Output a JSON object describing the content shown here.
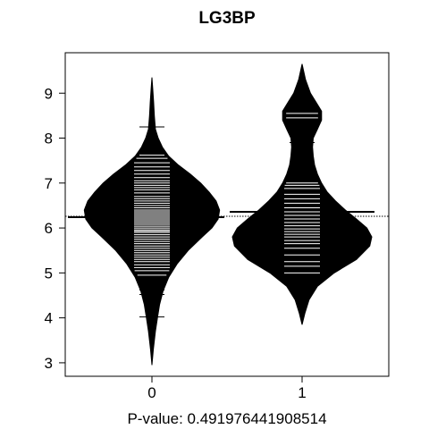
{
  "chart_data": {
    "type": "beanplot",
    "title": "LG3BP",
    "xlabel": "P-value: 0.491976441908514",
    "ylabel": "",
    "ylim": [
      2.7,
      9.9
    ],
    "yticks": [
      3,
      4,
      5,
      6,
      7,
      8,
      9
    ],
    "overall_mean_line": 6.26,
    "grid": false,
    "legend": "none",
    "groups": [
      {
        "label": "0",
        "mean": 6.24,
        "density": [
          [
            2.95,
            0.0
          ],
          [
            3.3,
            0.02
          ],
          [
            3.7,
            0.05
          ],
          [
            4.0,
            0.08
          ],
          [
            4.3,
            0.11
          ],
          [
            4.6,
            0.16
          ],
          [
            4.9,
            0.24
          ],
          [
            5.2,
            0.36
          ],
          [
            5.5,
            0.52
          ],
          [
            5.8,
            0.72
          ],
          [
            6.0,
            0.86
          ],
          [
            6.2,
            0.95
          ],
          [
            6.4,
            0.97
          ],
          [
            6.6,
            0.92
          ],
          [
            6.8,
            0.82
          ],
          [
            7.0,
            0.7
          ],
          [
            7.2,
            0.55
          ],
          [
            7.4,
            0.38
          ],
          [
            7.6,
            0.24
          ],
          [
            7.8,
            0.15
          ],
          [
            8.0,
            0.09
          ],
          [
            8.2,
            0.05
          ],
          [
            8.5,
            0.035
          ],
          [
            8.8,
            0.025
          ],
          [
            9.1,
            0.012
          ],
          [
            9.35,
            0.0
          ]
        ],
        "points": [
          4.02,
          4.52,
          4.62,
          4.72,
          4.85,
          4.95,
          5.05,
          5.12,
          5.18,
          5.25,
          5.3,
          5.35,
          5.4,
          5.45,
          5.5,
          5.55,
          5.6,
          5.65,
          5.7,
          5.75,
          5.8,
          5.85,
          5.9,
          5.93,
          5.96,
          6.0,
          6.04,
          6.08,
          6.12,
          6.16,
          6.2,
          6.24,
          6.28,
          6.32,
          6.36,
          6.4,
          6.45,
          6.5,
          6.55,
          6.6,
          6.65,
          6.7,
          6.78,
          6.85,
          6.9,
          6.95,
          7.0,
          7.05,
          7.12,
          7.2,
          7.28,
          7.36,
          7.45,
          7.55,
          7.62,
          7.68,
          8.25
        ]
      },
      {
        "label": "1",
        "mean": 6.36,
        "density": [
          [
            3.85,
            0.0
          ],
          [
            4.1,
            0.04
          ],
          [
            4.4,
            0.1
          ],
          [
            4.7,
            0.22
          ],
          [
            5.0,
            0.46
          ],
          [
            5.3,
            0.78
          ],
          [
            5.6,
            0.97
          ],
          [
            5.8,
            1.0
          ],
          [
            6.0,
            0.93
          ],
          [
            6.2,
            0.78
          ],
          [
            6.4,
            0.62
          ],
          [
            6.6,
            0.48
          ],
          [
            6.8,
            0.36
          ],
          [
            7.0,
            0.28
          ],
          [
            7.2,
            0.22
          ],
          [
            7.4,
            0.18
          ],
          [
            7.6,
            0.16
          ],
          [
            7.8,
            0.15
          ],
          [
            8.0,
            0.16
          ],
          [
            8.2,
            0.22
          ],
          [
            8.4,
            0.28
          ],
          [
            8.6,
            0.28
          ],
          [
            8.8,
            0.2
          ],
          [
            9.0,
            0.12
          ],
          [
            9.3,
            0.05
          ],
          [
            9.65,
            0.0
          ]
        ],
        "points": [
          5.0,
          5.15,
          5.25,
          5.4,
          5.55,
          5.65,
          5.72,
          5.8,
          5.86,
          5.92,
          5.98,
          6.05,
          6.12,
          6.2,
          6.28,
          6.36,
          6.45,
          6.55,
          6.65,
          6.75,
          6.88,
          6.95,
          7.0,
          7.9,
          8.45,
          8.55
        ]
      }
    ]
  }
}
